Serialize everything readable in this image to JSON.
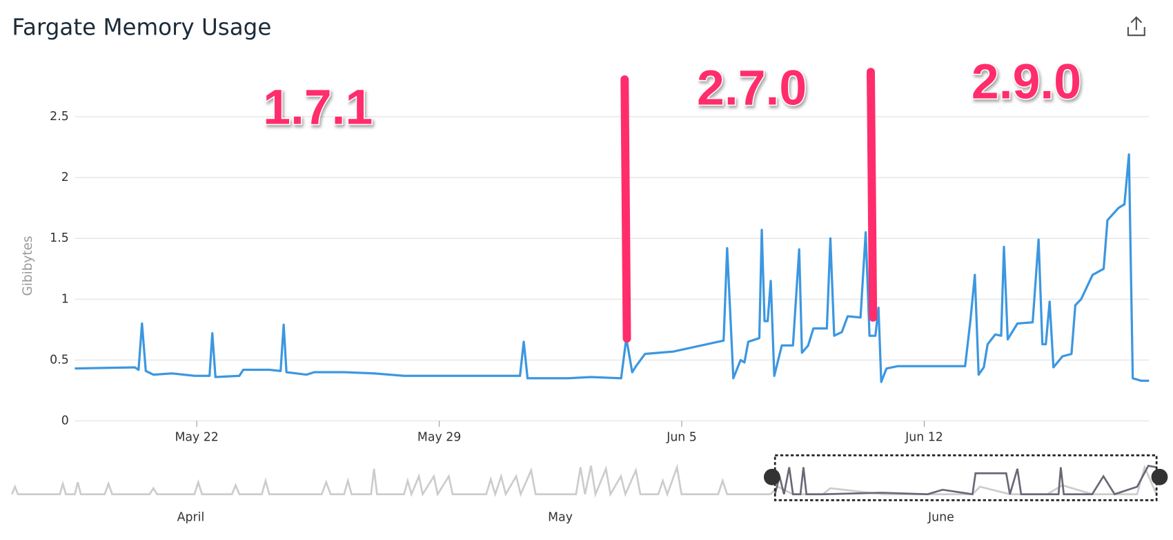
{
  "chart_data": {
    "type": "line",
    "title": "Fargate Memory Usage",
    "ylabel": "Gibibytes",
    "color": "#3c97e0",
    "grid": true,
    "xlim": [
      18.48,
      49.49
    ],
    "xticks": [
      {
        "value": 22,
        "label": "May 22"
      },
      {
        "value": 29,
        "label": "May 29"
      },
      {
        "value": 36,
        "label": "Jun 5"
      },
      {
        "value": 43,
        "label": "Jun 12"
      }
    ],
    "ylim": [
      0,
      2.8
    ],
    "yticks": [
      0,
      0.5,
      1,
      1.5,
      2,
      2.5
    ],
    "x": [
      18.48,
      20.21,
      20.32,
      20.42,
      20.53,
      20.75,
      21.29,
      21.94,
      22.37,
      22.45,
      22.54,
      23.23,
      23.34,
      24.1,
      24.42,
      24.51,
      24.59,
      25.17,
      25.39,
      26.25,
      27.12,
      27.98,
      30.14,
      31.33,
      31.44,
      31.55,
      32.73,
      33.38,
      34.25,
      34.4,
      34.57,
      34.68,
      34.94,
      35.76,
      37.05,
      37.21,
      37.31,
      37.49,
      37.7,
      37.81,
      37.92,
      38.24,
      38.31,
      38.39,
      38.48,
      38.57,
      38.67,
      38.89,
      39.21,
      39.39,
      39.47,
      39.65,
      39.8,
      40.19,
      40.29,
      40.4,
      40.62,
      40.79,
      41.16,
      41.31,
      41.42,
      41.59,
      41.68,
      41.76,
      41.91,
      42.24,
      44.18,
      44.33,
      44.46,
      44.57,
      44.72,
      44.83,
      45.05,
      45.22,
      45.3,
      45.41,
      45.69,
      46.13,
      46.3,
      46.41,
      46.51,
      46.62,
      46.73,
      46.99,
      47.25,
      47.36,
      47.53,
      47.86,
      48.18,
      48.29,
      48.61,
      48.78,
      48.91,
      49.02,
      49.26,
      49.49
    ],
    "values": [
      0.43,
      0.44,
      0.42,
      0.8,
      0.41,
      0.38,
      0.39,
      0.37,
      0.37,
      0.72,
      0.36,
      0.37,
      0.42,
      0.42,
      0.41,
      0.79,
      0.4,
      0.38,
      0.4,
      0.4,
      0.39,
      0.37,
      0.37,
      0.37,
      0.65,
      0.35,
      0.35,
      0.36,
      0.35,
      0.68,
      0.4,
      0.45,
      0.55,
      0.57,
      0.65,
      0.66,
      1.42,
      0.35,
      0.5,
      0.48,
      0.65,
      0.68,
      1.57,
      0.82,
      0.82,
      1.15,
      0.37,
      0.62,
      0.62,
      1.41,
      0.56,
      0.62,
      0.76,
      0.76,
      1.5,
      0.7,
      0.73,
      0.86,
      0.85,
      1.55,
      0.7,
      0.7,
      0.93,
      0.32,
      0.43,
      0.45,
      0.45,
      0.82,
      1.2,
      0.38,
      0.44,
      0.63,
      0.71,
      0.7,
      1.43,
      0.67,
      0.8,
      0.81,
      1.49,
      0.63,
      0.63,
      0.98,
      0.44,
      0.53,
      0.55,
      0.95,
      1.0,
      1.2,
      1.25,
      1.65,
      1.75,
      1.78,
      2.19,
      0.35,
      0.33,
      0.33
    ],
    "annotations": [
      "1.7.1",
      "2.7.0",
      "2.9.0"
    ],
    "overview_labels": [
      "April",
      "May",
      "June"
    ]
  }
}
